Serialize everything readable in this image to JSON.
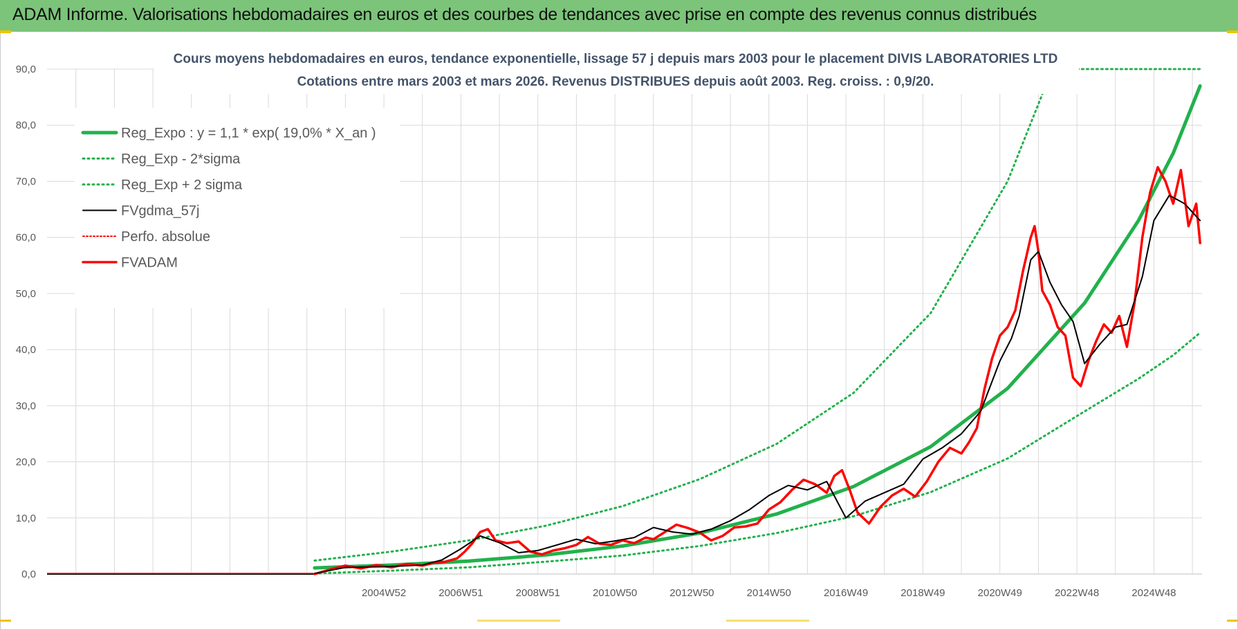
{
  "header": {
    "title": "ADAM Informe. Valorisations hebdomadaires en euros et des courbes de tendances avec prise en compte des revenus connus distribués"
  },
  "colors": {
    "header_bg": "#7cc47a",
    "reg_expo": "#22b14c",
    "bands": "#22b14c",
    "fvgdma": "#000000",
    "perfo": "#ff0000",
    "fvadam": "#ff0000",
    "grid": "#d9d9d9"
  },
  "chart_data": {
    "type": "line",
    "title": "Cours moyens hebdomadaires en euros, tendance exponentielle, lissage 57 j depuis mars 2003 pour le placement DIVIS LABORATORIES LTD",
    "subtitle": "Cotations entre mars 2003 et mars 2026. Revenus DISTRIBUES depuis août 2003. Reg. croiss. : 0,9/20.",
    "xlabel": "",
    "ylabel": "",
    "ylim": [
      0,
      90
    ],
    "yticks": [
      0,
      10,
      20,
      30,
      40,
      50,
      60,
      70,
      80,
      90
    ],
    "ytick_labels": [
      "0,0",
      "10,0",
      "20,0",
      "30,0",
      "40,0",
      "50,0",
      "60,0",
      "70,0",
      "80,0",
      "90,0"
    ],
    "xlim": [
      1996.25,
      2026.25
    ],
    "xticks": [
      2005.0,
      2007.0,
      2009.0,
      2011.0,
      2013.0,
      2015.0,
      2017.0,
      2019.0,
      2021.0,
      2023.0,
      2025.0
    ],
    "xtick_labels": [
      "2004W52",
      "2006W51",
      "2008W51",
      "2010W50",
      "2012W50",
      "2014W50",
      "2016W49",
      "2018W49",
      "2020W49",
      "2022W48",
      "2024W48"
    ],
    "legend_position": "top-left",
    "regression": {
      "a": 1.1,
      "rate": 0.19,
      "start": 2003.2,
      "end": 2026.2
    },
    "series": [
      {
        "name": "Reg_Expo : y = 1,1 * exp( 19,0% *  X_an )",
        "style": "solid-thick",
        "x": [
          2003.2,
          2005.2,
          2007.2,
          2009.2,
          2011.2,
          2013.2,
          2015.2,
          2017.2,
          2019.2,
          2021.2,
          2023.2,
          2024.6,
          2025.5,
          2026.2
        ],
        "values": [
          1.1,
          1.6,
          2.3,
          3.4,
          5.0,
          7.3,
          10.7,
          15.6,
          22.7,
          33.1,
          48.3,
          63.0,
          75.0,
          87.0
        ]
      },
      {
        "name": "Reg_Exp - 2*sigma",
        "style": "dotted",
        "x": [
          2003.2,
          2005.2,
          2007.2,
          2009.2,
          2011.2,
          2013.2,
          2015.2,
          2017.2,
          2019.2,
          2021.2,
          2023.2,
          2024.6,
          2025.5,
          2026.2
        ],
        "values": [
          0.1,
          0.6,
          1.2,
          2.2,
          3.3,
          5.0,
          7.3,
          10.3,
          14.6,
          20.6,
          29.0,
          34.8,
          39.0,
          43.0
        ]
      },
      {
        "name": "Reg_Exp + 2 sigma",
        "style": "dotted",
        "x": [
          2003.2,
          2005.2,
          2007.2,
          2009.2,
          2011.2,
          2013.2,
          2015.2,
          2017.2,
          2019.2,
          2021.2,
          2022.1,
          2022.15,
          2025.2,
          2026.2
        ],
        "values": [
          2.4,
          4.0,
          6.0,
          8.6,
          12.1,
          16.9,
          23.2,
          32.3,
          46.5,
          70.0,
          85.5,
          90.0,
          90.0,
          90.0
        ]
      },
      {
        "name": "FVgdma_57j",
        "style": "solid-thin",
        "x": [
          2003.2,
          2004.0,
          2005.0,
          2006.0,
          2006.5,
          2007.0,
          2007.5,
          2008.0,
          2008.5,
          2009.0,
          2009.5,
          2010.0,
          2010.5,
          2011.0,
          2011.5,
          2012.0,
          2012.5,
          2013.0,
          2013.5,
          2014.0,
          2014.5,
          2015.0,
          2015.5,
          2016.0,
          2016.5,
          2017.0,
          2017.5,
          2018.0,
          2018.5,
          2019.0,
          2019.5,
          2020.0,
          2020.5,
          2021.0,
          2021.3,
          2021.5,
          2021.8,
          2022.0,
          2022.3,
          2022.6,
          2022.9,
          2023.2,
          2023.6,
          2024.0,
          2024.3,
          2024.7,
          2025.0,
          2025.4,
          2025.8,
          2026.2
        ],
        "values": [
          0.1,
          1.2,
          1.3,
          1.6,
          2.5,
          4.5,
          6.8,
          5.6,
          3.8,
          4.2,
          5.2,
          6.2,
          5.4,
          5.9,
          6.5,
          8.3,
          7.5,
          7.1,
          8.0,
          9.5,
          11.5,
          14.0,
          15.8,
          15.0,
          16.5,
          10.0,
          13.0,
          14.5,
          16.0,
          20.5,
          22.5,
          25.0,
          29.0,
          38.0,
          42.0,
          46.0,
          56.0,
          57.5,
          52.0,
          48.0,
          45.0,
          37.5,
          41.0,
          44.0,
          44.5,
          53.0,
          63.0,
          67.5,
          66.0,
          63.0
        ]
      },
      {
        "name": "Perfo. absolue",
        "style": "dotted-red",
        "x": [],
        "values": []
      },
      {
        "name": "FVADAM",
        "style": "solid-red",
        "x": [
          2003.2,
          2003.6,
          2004.0,
          2004.4,
          2004.8,
          2005.2,
          2005.6,
          2006.0,
          2006.3,
          2006.6,
          2006.9,
          2007.1,
          2007.3,
          2007.5,
          2007.7,
          2007.9,
          2008.2,
          2008.5,
          2008.8,
          2009.1,
          2009.4,
          2009.7,
          2010.0,
          2010.3,
          2010.6,
          2010.9,
          2011.2,
          2011.5,
          2011.8,
          2012.0,
          2012.3,
          2012.6,
          2012.9,
          2013.2,
          2013.5,
          2013.8,
          2014.1,
          2014.4,
          2014.7,
          2015.0,
          2015.3,
          2015.6,
          2015.9,
          2016.2,
          2016.5,
          2016.7,
          2016.9,
          2017.1,
          2017.3,
          2017.6,
          2017.9,
          2018.2,
          2018.5,
          2018.8,
          2019.1,
          2019.4,
          2019.7,
          2020.0,
          2020.2,
          2020.4,
          2020.6,
          2020.8,
          2021.0,
          2021.2,
          2021.4,
          2021.6,
          2021.8,
          2021.9,
          2022.0,
          2022.1,
          2022.3,
          2022.5,
          2022.7,
          2022.9,
          2023.1,
          2023.3,
          2023.5,
          2023.7,
          2023.9,
          2024.1,
          2024.3,
          2024.5,
          2024.7,
          2024.9,
          2025.1,
          2025.3,
          2025.5,
          2025.7,
          2025.9,
          2026.1,
          2026.2
        ],
        "values": [
          0.0,
          0.8,
          1.5,
          1.0,
          1.6,
          1.2,
          1.8,
          1.5,
          2.0,
          2.2,
          2.8,
          4.0,
          5.5,
          7.5,
          8.0,
          6.0,
          5.5,
          5.8,
          4.0,
          3.5,
          4.2,
          4.6,
          5.2,
          6.6,
          5.4,
          5.2,
          6.0,
          5.5,
          6.5,
          6.2,
          7.5,
          8.8,
          8.2,
          7.4,
          6.0,
          6.8,
          8.3,
          8.5,
          9.0,
          11.5,
          12.8,
          15.0,
          16.8,
          16.0,
          14.5,
          17.5,
          18.5,
          15.0,
          11.0,
          9.0,
          12.0,
          14.0,
          15.2,
          13.8,
          16.5,
          20.0,
          22.5,
          21.5,
          23.5,
          26.0,
          33.0,
          38.5,
          42.5,
          44.0,
          47.0,
          54.0,
          60.0,
          62.0,
          57.5,
          50.5,
          48.0,
          44.0,
          42.5,
          35.0,
          33.5,
          38.0,
          41.5,
          44.5,
          43.0,
          46.0,
          40.5,
          48.5,
          60.0,
          68.0,
          72.5,
          70.0,
          66.0,
          72.0,
          62.0,
          66.0,
          59.0
        ]
      }
    ]
  }
}
